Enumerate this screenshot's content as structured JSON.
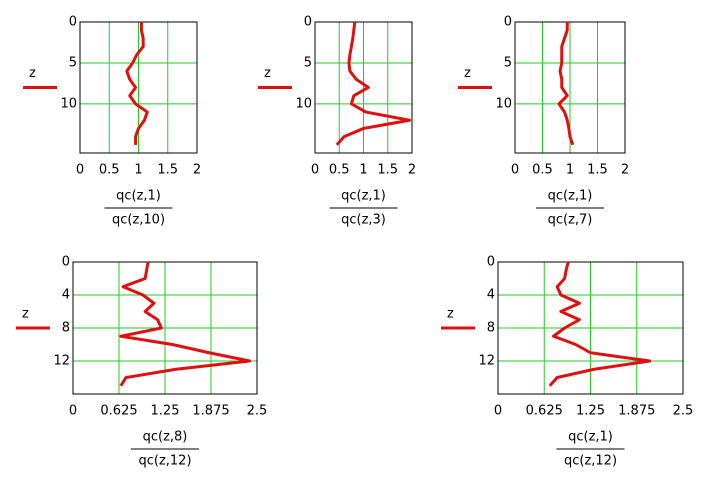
{
  "chart_data": [
    {
      "type": "line",
      "ylabel": "z",
      "xlabel": {
        "numerator": "qc(z,1)",
        "denominator": "qc(z,10)"
      },
      "xlim": [
        0,
        2
      ],
      "xticks": [
        0,
        0.5,
        1,
        1.5,
        2
      ],
      "ylim": [
        16,
        0
      ],
      "yticks": [
        0,
        5,
        10
      ],
      "grid": true,
      "y": [
        0,
        1,
        2,
        3,
        4,
        5,
        6,
        7,
        8,
        9,
        10,
        11,
        12,
        13,
        14,
        15
      ],
      "series": [
        {
          "color": "#e01010",
          "values": [
            1.05,
            1.05,
            1.08,
            1.08,
            0.97,
            0.9,
            0.8,
            0.85,
            0.95,
            0.85,
            0.95,
            1.15,
            1.1,
            1.0,
            0.95,
            0.95
          ]
        }
      ]
    },
    {
      "type": "line",
      "ylabel": "z",
      "xlabel": {
        "numerator": "qc(z,1)",
        "denominator": "qc(z,3)"
      },
      "xlim": [
        0,
        2
      ],
      "xticks": [
        0,
        0.5,
        1,
        1.5,
        2
      ],
      "ylim": [
        16,
        0
      ],
      "yticks": [
        0,
        5,
        10
      ],
      "grid": true,
      "y": [
        0,
        1,
        2,
        3,
        4,
        5,
        6,
        7,
        8,
        9,
        10,
        11,
        12,
        13,
        14,
        15
      ],
      "series": [
        {
          "color": "#e01010",
          "values": [
            0.82,
            0.8,
            0.78,
            0.75,
            0.72,
            0.7,
            0.72,
            0.85,
            1.1,
            0.8,
            0.75,
            1.05,
            1.95,
            1.0,
            0.6,
            0.45
          ]
        }
      ]
    },
    {
      "type": "line",
      "ylabel": "z",
      "xlabel": {
        "numerator": "qc(z,1)",
        "denominator": "qc(z,7)"
      },
      "xlim": [
        0,
        2
      ],
      "xticks": [
        0,
        0.5,
        1,
        1.5,
        2
      ],
      "ylim": [
        16,
        0
      ],
      "yticks": [
        0,
        5,
        10
      ],
      "grid": true,
      "y": [
        0,
        1,
        2,
        3,
        4,
        5,
        6,
        7,
        8,
        9,
        10,
        11,
        12,
        13,
        14,
        15
      ],
      "series": [
        {
          "color": "#e01010",
          "values": [
            0.95,
            0.95,
            0.9,
            0.85,
            0.85,
            0.85,
            0.82,
            0.85,
            0.85,
            0.95,
            0.8,
            0.9,
            0.95,
            0.98,
            1.0,
            1.05
          ]
        }
      ]
    },
    {
      "type": "line",
      "ylabel": "z",
      "xlabel": {
        "numerator": "qc(z,8)",
        "denominator": "qc(z,12)"
      },
      "xlim": [
        0,
        2.5
      ],
      "xticks": [
        0,
        0.625,
        1.25,
        1.875,
        2.5
      ],
      "ylim": [
        16,
        0
      ],
      "yticks": [
        0,
        4,
        8,
        12
      ],
      "grid": true,
      "y": [
        0,
        1,
        2,
        3,
        4,
        5,
        6,
        7,
        8,
        9,
        10,
        11,
        12,
        13,
        14,
        15
      ],
      "series": [
        {
          "color": "#e01010",
          "values": [
            1.02,
            1.0,
            0.98,
            0.68,
            0.95,
            1.1,
            0.98,
            1.15,
            1.2,
            0.65,
            1.35,
            1.85,
            2.4,
            1.4,
            0.72,
            0.65
          ]
        }
      ]
    },
    {
      "type": "line",
      "ylabel": "z",
      "xlabel": {
        "numerator": "qc(z,1)",
        "denominator": "qc(z,12)"
      },
      "xlim": [
        0,
        2.5
      ],
      "xticks": [
        0,
        0.625,
        1.25,
        1.875,
        2.5
      ],
      "ylim": [
        16,
        0
      ],
      "yticks": [
        0,
        4,
        8,
        12
      ],
      "grid": true,
      "y": [
        0,
        1,
        2,
        3,
        4,
        5,
        6,
        7,
        8,
        9,
        10,
        11,
        12,
        13,
        14,
        15
      ],
      "series": [
        {
          "color": "#e01010",
          "values": [
            0.95,
            0.92,
            0.9,
            0.8,
            0.85,
            1.1,
            0.85,
            1.1,
            0.9,
            0.75,
            1.05,
            1.25,
            2.05,
            1.3,
            0.8,
            0.7
          ]
        }
      ]
    }
  ]
}
